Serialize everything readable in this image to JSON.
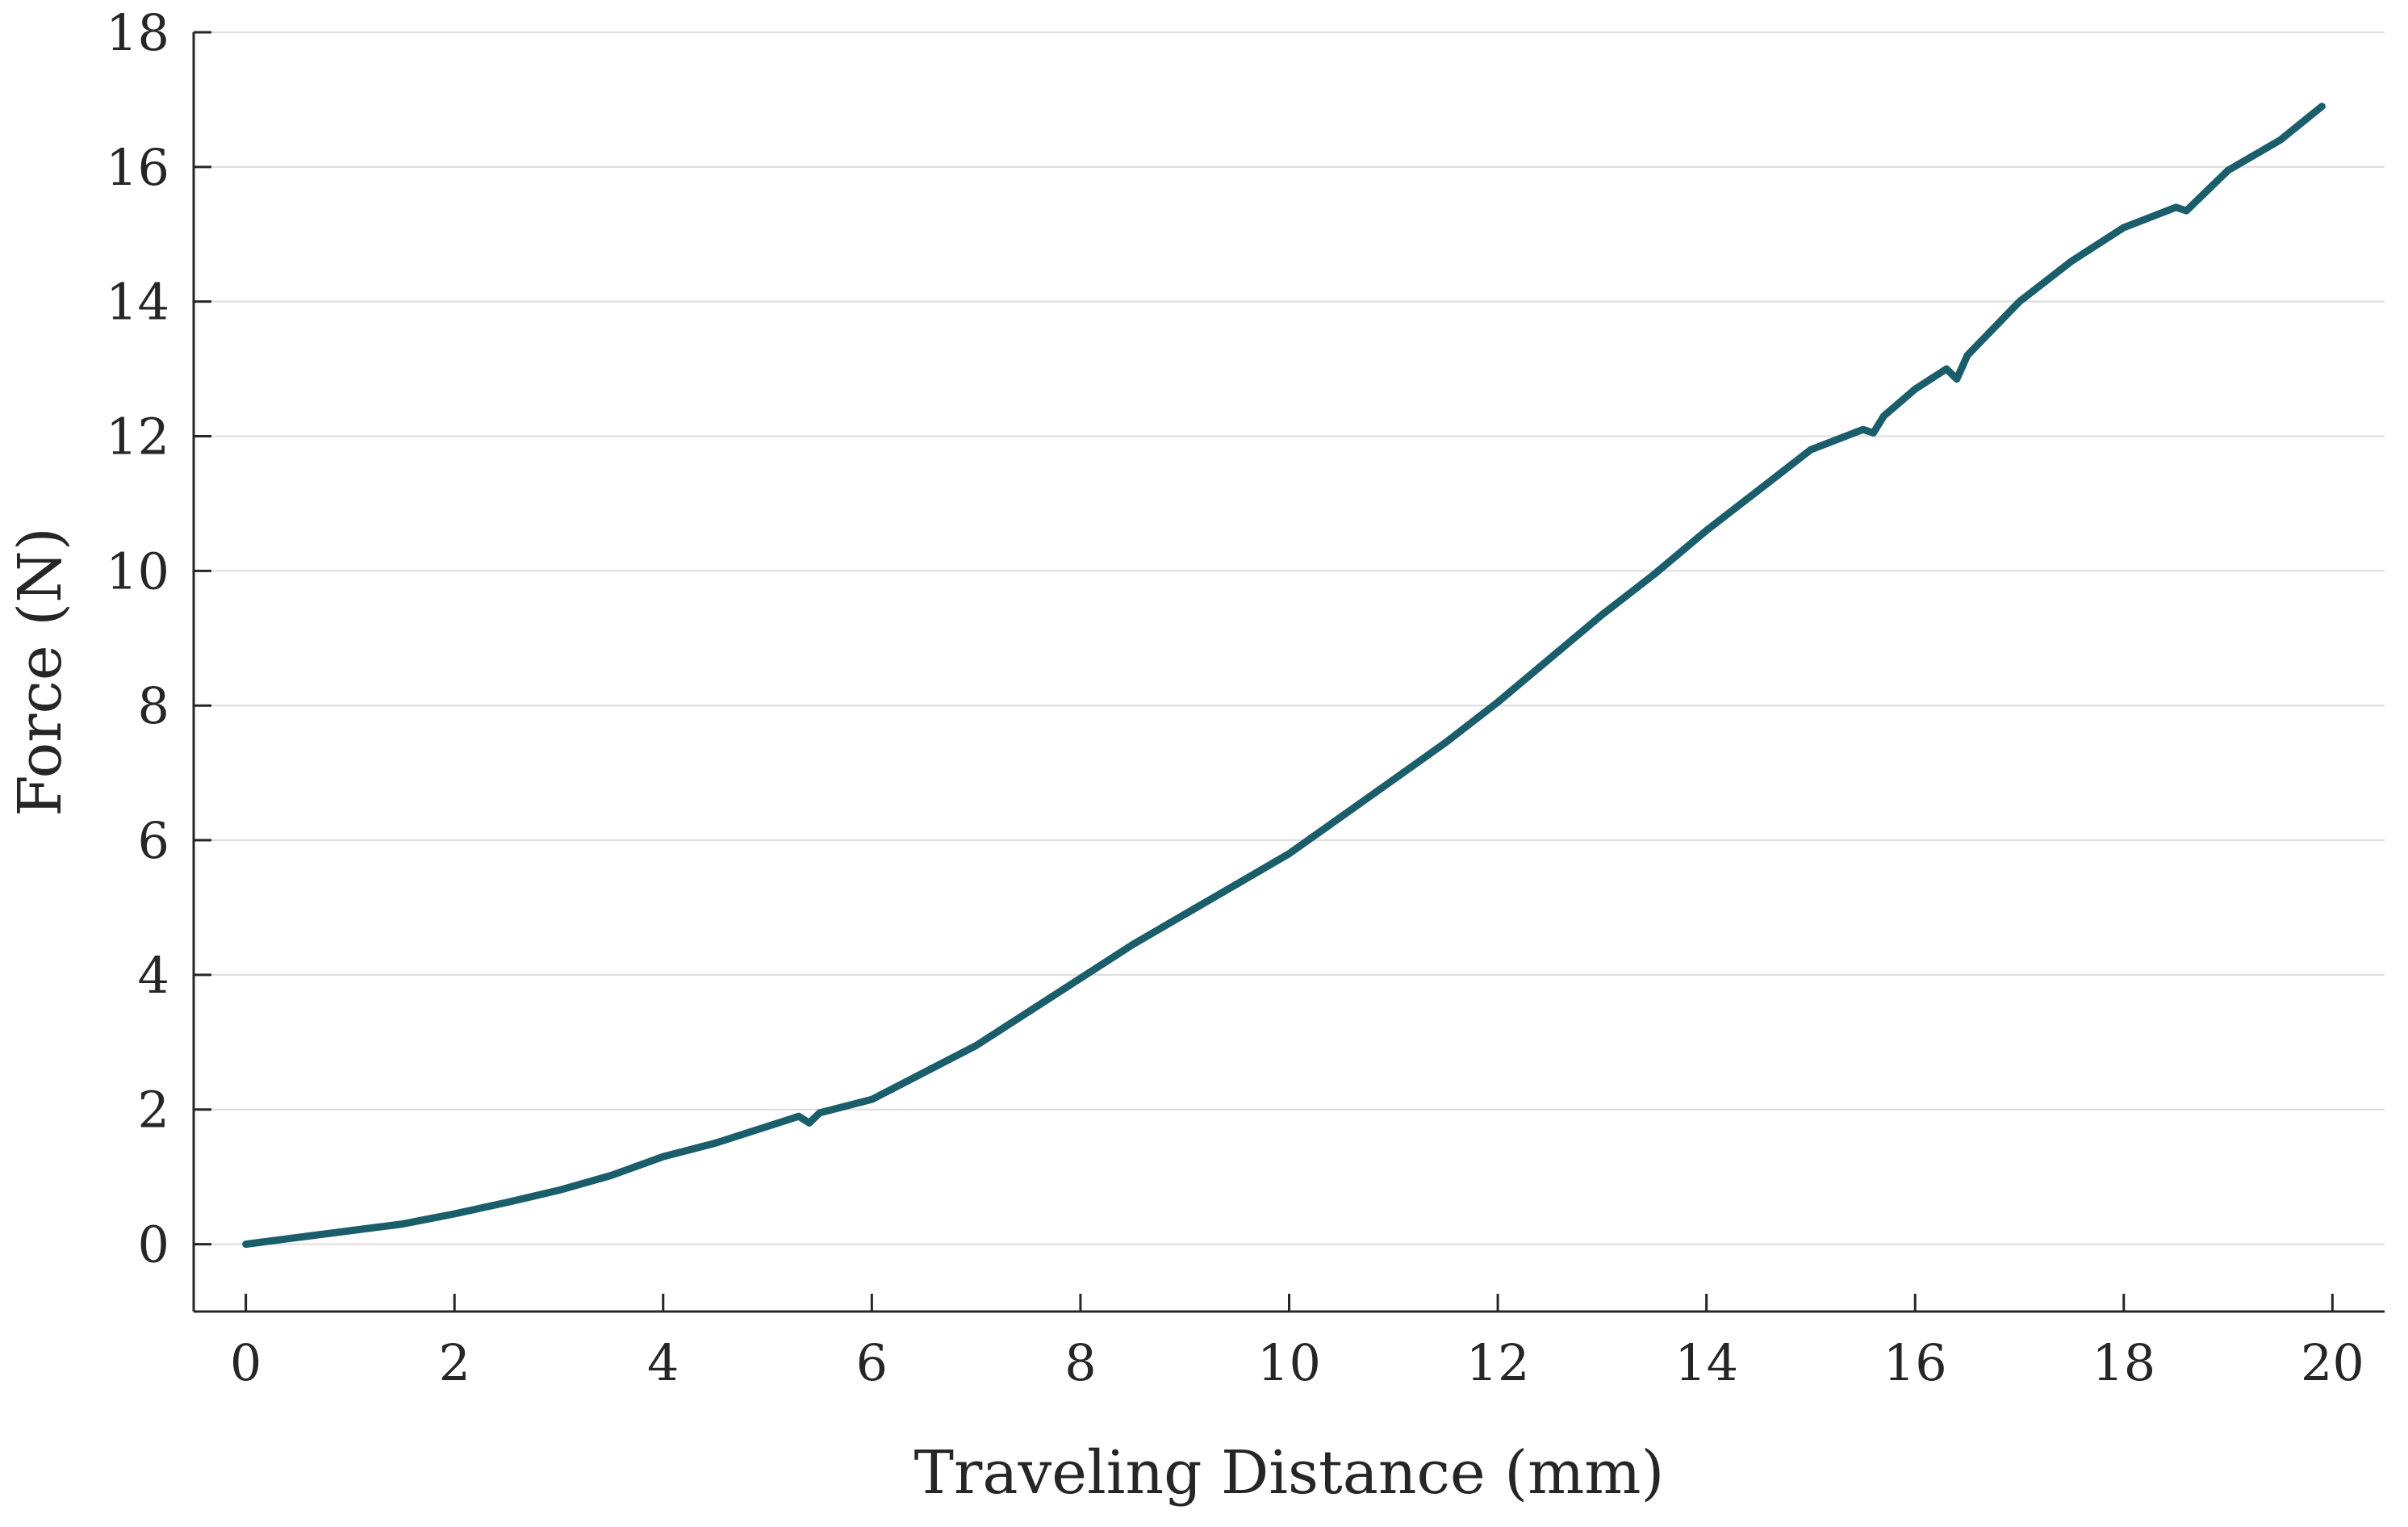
{
  "chart_data": {
    "type": "line",
    "title": "",
    "xlabel": "Traveling Distance (mm)",
    "ylabel": "Force (N)",
    "xlim": [
      -0.5,
      20.5
    ],
    "ylim": [
      -1,
      18
    ],
    "xticks": [
      0,
      2,
      4,
      6,
      8,
      10,
      12,
      14,
      16,
      18,
      20
    ],
    "yticks": [
      0,
      2,
      4,
      6,
      8,
      10,
      12,
      14,
      16,
      18
    ],
    "grid": "horizontal",
    "line_color": "#1b5e6b",
    "series": [
      {
        "x": [
          0,
          0.5,
          1,
          1.5,
          2,
          2.5,
          3,
          3.5,
          4,
          4.5,
          5,
          5.3,
          5.4,
          5.5,
          6,
          6.5,
          7,
          7.5,
          8,
          8.5,
          9,
          9.5,
          10,
          10.5,
          11,
          11.5,
          12,
          12.5,
          13,
          13.5,
          14,
          14.5,
          15,
          15.5,
          15.6,
          15.7,
          16,
          16.3,
          16.4,
          16.5,
          17,
          17.5,
          18,
          18.5,
          18.6,
          19,
          19.5,
          19.9
        ],
        "y": [
          0,
          0.1,
          0.2,
          0.3,
          0.45,
          0.62,
          0.8,
          1.02,
          1.3,
          1.5,
          1.75,
          1.9,
          1.8,
          1.95,
          2.15,
          2.55,
          2.95,
          3.45,
          3.95,
          4.45,
          4.9,
          5.35,
          5.8,
          6.35,
          6.9,
          7.45,
          8.05,
          8.7,
          9.35,
          9.95,
          10.6,
          11.2,
          11.8,
          12.1,
          12.05,
          12.3,
          12.7,
          13.0,
          12.85,
          13.2,
          14.0,
          14.6,
          15.1,
          15.4,
          15.35,
          15.95,
          16.4,
          16.9
        ]
      }
    ]
  }
}
